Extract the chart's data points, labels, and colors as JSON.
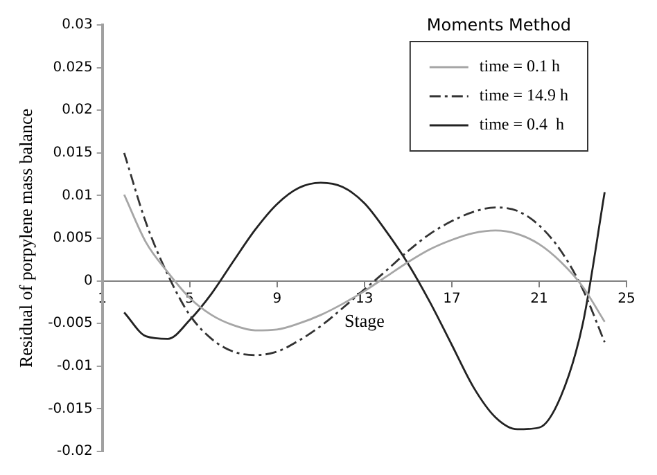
{
  "chart_data": {
    "type": "line",
    "xlabel": "Stage",
    "ylabel": "Residual of porpylene mass balance",
    "legend_title": "Moments Method",
    "x": [
      2,
      3,
      4,
      5,
      6,
      7,
      8,
      9,
      10,
      11,
      12,
      13,
      14,
      15,
      16,
      17,
      18,
      19,
      20,
      21,
      22,
      23,
      24
    ],
    "series": [
      {
        "name": "time = 0.1 h",
        "color": "#a6a6a6",
        "line_style": "solid",
        "values": [
          0.0101,
          0.0045,
          0.001,
          -0.002,
          -0.004,
          -0.0052,
          -0.0058,
          -0.0057,
          -0.005,
          -0.004,
          -0.0027,
          -0.0012,
          0.0005,
          0.0022,
          0.0037,
          0.0048,
          0.0056,
          0.0059,
          0.0055,
          0.0043,
          0.0022,
          -0.0007,
          -0.0048
        ]
      },
      {
        "name": "time = 14.9 h",
        "color": "#333333",
        "line_style": "dashed",
        "values": [
          0.015,
          0.0068,
          0.0007,
          -0.004,
          -0.0068,
          -0.0083,
          -0.0087,
          -0.0083,
          -0.007,
          -0.0053,
          -0.0032,
          -0.001,
          0.0012,
          0.0035,
          0.0055,
          0.007,
          0.0081,
          0.0086,
          0.0082,
          0.0065,
          0.0035,
          -0.001,
          -0.0072
        ]
      },
      {
        "name": "time = 0.4  h",
        "color": "#222222",
        "line_style": "solid",
        "values": [
          -0.0037,
          -0.0065,
          -0.0068,
          -0.0046,
          -0.0015,
          0.0023,
          0.006,
          0.009,
          0.0109,
          0.0115,
          0.011,
          0.0091,
          0.0058,
          0.002,
          -0.0025,
          -0.0075,
          -0.0125,
          -0.016,
          -0.0174,
          -0.0172,
          -0.0135,
          -0.005,
          0.0104
        ]
      }
    ],
    "xlim": [
      1,
      25
    ],
    "xticks": [
      1,
      5,
      9,
      13,
      17,
      21,
      25
    ],
    "ylim": [
      -0.02,
      0.03
    ],
    "yticks": [
      -0.02,
      -0.015,
      -0.01,
      -0.005,
      0,
      0.005,
      0.01,
      0.015,
      0.02,
      0.025,
      0.03
    ],
    "grid": false,
    "legend": "top right"
  }
}
